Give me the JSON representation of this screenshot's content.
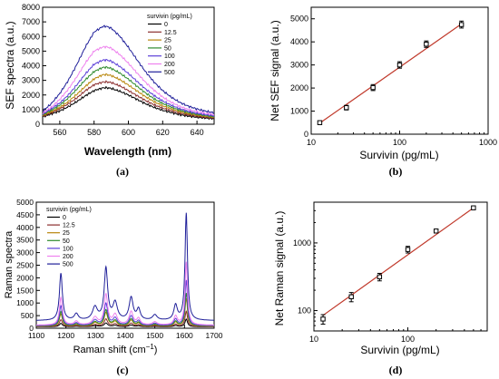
{
  "chart_data": [
    {
      "id": "a",
      "type": "line",
      "panel_label": "(a)",
      "xlabel": "Wavelength (nm)",
      "ylabel": "SEF spectra (a.u.)",
      "xlim": [
        550,
        650
      ],
      "ylim": [
        0,
        8000
      ],
      "xticks": [
        560,
        580,
        600,
        620,
        640
      ],
      "yticks": [
        0,
        1000,
        2000,
        3000,
        4000,
        5000,
        6000,
        7000,
        8000
      ],
      "legend_title": "survivin (pg/mL)",
      "legend_position": "top-right",
      "peak_nm": 587,
      "x": [
        550,
        555,
        560,
        565,
        570,
        575,
        580,
        585,
        587,
        590,
        595,
        600,
        605,
        610,
        615,
        620,
        625,
        630,
        635,
        640,
        645,
        650
      ],
      "series": [
        {
          "name": "0",
          "color": "#000000",
          "values": [
            500,
            700,
            900,
            1200,
            1550,
            1950,
            2300,
            2480,
            2500,
            2450,
            2250,
            2000,
            1700,
            1400,
            1150,
            950,
            800,
            650,
            550,
            480,
            420,
            380
          ]
        },
        {
          "name": "12.5",
          "color": "#8b2e2e",
          "values": [
            550,
            780,
            1050,
            1400,
            1800,
            2300,
            2700,
            2880,
            2900,
            2850,
            2620,
            2300,
            1960,
            1620,
            1330,
            1100,
            920,
            760,
            640,
            550,
            480,
            430
          ]
        },
        {
          "name": "25",
          "color": "#b8860b",
          "values": [
            600,
            850,
            1150,
            1550,
            2050,
            2600,
            3100,
            3380,
            3400,
            3330,
            3050,
            2680,
            2280,
            1880,
            1540,
            1260,
            1050,
            860,
            720,
            620,
            540,
            480
          ]
        },
        {
          "name": "50",
          "color": "#2e8b2e",
          "values": [
            650,
            950,
            1300,
            1800,
            2400,
            3050,
            3600,
            3880,
            3900,
            3820,
            3500,
            3080,
            2600,
            2140,
            1740,
            1420,
            1170,
            960,
            800,
            680,
            590,
            520
          ]
        },
        {
          "name": "100",
          "color": "#5b3fd8",
          "values": [
            700,
            1050,
            1450,
            2000,
            2700,
            3450,
            4100,
            4380,
            4400,
            4310,
            3950,
            3470,
            2930,
            2410,
            1960,
            1590,
            1300,
            1060,
            880,
            750,
            650,
            580
          ]
        },
        {
          "name": "200",
          "color": "#ee82ee",
          "values": [
            750,
            1150,
            1700,
            2400,
            3250,
            4200,
            5000,
            5280,
            5300,
            5200,
            4760,
            4170,
            3510,
            2870,
            2320,
            1860,
            1500,
            1220,
            1010,
            860,
            740,
            660
          ]
        },
        {
          "name": "500",
          "color": "#20209a",
          "values": [
            900,
            1400,
            2100,
            3000,
            4100,
            5300,
            6300,
            6680,
            6700,
            6570,
            6020,
            5260,
            4410,
            3590,
            2880,
            2300,
            1850,
            1490,
            1230,
            1040,
            890,
            780
          ]
        }
      ]
    },
    {
      "id": "b",
      "type": "scatter",
      "panel_label": "(b)",
      "xlabel": "Survivin (pg/mL)",
      "ylabel": "Net SEF signal (a.u.)",
      "xscale": "log",
      "xlim": [
        10,
        1000
      ],
      "ylim": [
        0,
        5500
      ],
      "xticks": [
        10,
        100,
        1000
      ],
      "yticks": [
        0,
        1000,
        2000,
        3000,
        4000,
        5000
      ],
      "marker_color": "#000000",
      "fit_color": "#c0392b",
      "fit": {
        "x": [
          12.5,
          500
        ],
        "y": [
          480,
          4780
        ]
      },
      "points": [
        {
          "x": 12.5,
          "y": 500,
          "err": 50
        },
        {
          "x": 25,
          "y": 1150,
          "err": 100
        },
        {
          "x": 50,
          "y": 2020,
          "err": 130
        },
        {
          "x": 100,
          "y": 3000,
          "err": 140
        },
        {
          "x": 200,
          "y": 3900,
          "err": 140
        },
        {
          "x": 500,
          "y": 4750,
          "err": 150
        }
      ]
    },
    {
      "id": "c",
      "type": "line",
      "panel_label": "(c)",
      "xlabel": "Raman shift (cm",
      "xlabel_sup": "−1",
      "xlabel_end": ")",
      "ylabel": "Raman spectra",
      "xlim": [
        1100,
        1700
      ],
      "ylim": [
        0,
        5000
      ],
      "xticks": [
        1100,
        1200,
        1300,
        1400,
        1500,
        1600,
        1700
      ],
      "yticks": [
        0,
        500,
        1000,
        1500,
        2000,
        2500,
        3000,
        3500,
        4000,
        4500,
        5000
      ],
      "legend_title": "survivin (pg/mL)",
      "legend_position": "top-left",
      "peaks": [
        {
          "center": 1183,
          "width": 6,
          "rel": 0.44
        },
        {
          "center": 1235,
          "width": 8,
          "rel": 0.06
        },
        {
          "center": 1298,
          "width": 10,
          "rel": 0.12
        },
        {
          "center": 1335,
          "width": 7,
          "rel": 0.48
        },
        {
          "center": 1366,
          "width": 9,
          "rel": 0.16
        },
        {
          "center": 1420,
          "width": 8,
          "rel": 0.21
        },
        {
          "center": 1445,
          "width": 7,
          "rel": 0.1
        },
        {
          "center": 1500,
          "width": 9,
          "rel": 0.05
        },
        {
          "center": 1570,
          "width": 7,
          "rel": 0.14
        },
        {
          "center": 1606,
          "width": 5,
          "rel": 1.0
        }
      ],
      "series": [
        {
          "name": "0",
          "color": "#000000",
          "baseline": 60,
          "peak": 300
        },
        {
          "name": "12.5",
          "color": "#8b2e2e",
          "baseline": 70,
          "peak": 600
        },
        {
          "name": "25",
          "color": "#b8860b",
          "baseline": 80,
          "peak": 1100
        },
        {
          "name": "50",
          "color": "#2e8b2e",
          "baseline": 90,
          "peak": 1300
        },
        {
          "name": "100",
          "color": "#5b3fd8",
          "baseline": 100,
          "peak": 1800
        },
        {
          "name": "200",
          "color": "#ee82ee",
          "baseline": 120,
          "peak": 2500
        },
        {
          "name": "500",
          "color": "#20209a",
          "baseline": 300,
          "peak": 4250
        }
      ]
    },
    {
      "id": "d",
      "type": "scatter",
      "panel_label": "(d)",
      "xlabel": "Survivin (pg/mL)",
      "ylabel": "Net Raman signal (a.u.)",
      "xscale": "log",
      "yscale": "log",
      "xlim": [
        10,
        700
      ],
      "ylim": [
        50,
        4000
      ],
      "xticks": [
        10,
        100
      ],
      "yticks": [
        100,
        1000
      ],
      "marker_color": "#000000",
      "fit_color": "#c0392b",
      "fit": {
        "x": [
          12.5,
          500
        ],
        "y": [
          85,
          3300
        ]
      },
      "points": [
        {
          "x": 12.5,
          "y": 75,
          "err": 12
        },
        {
          "x": 25,
          "y": 160,
          "err": 25
        },
        {
          "x": 50,
          "y": 315,
          "err": 40
        },
        {
          "x": 100,
          "y": 800,
          "err": 90
        },
        {
          "x": 200,
          "y": 1500,
          "err": 90
        },
        {
          "x": 500,
          "y": 3300,
          "err": 150
        }
      ]
    }
  ]
}
